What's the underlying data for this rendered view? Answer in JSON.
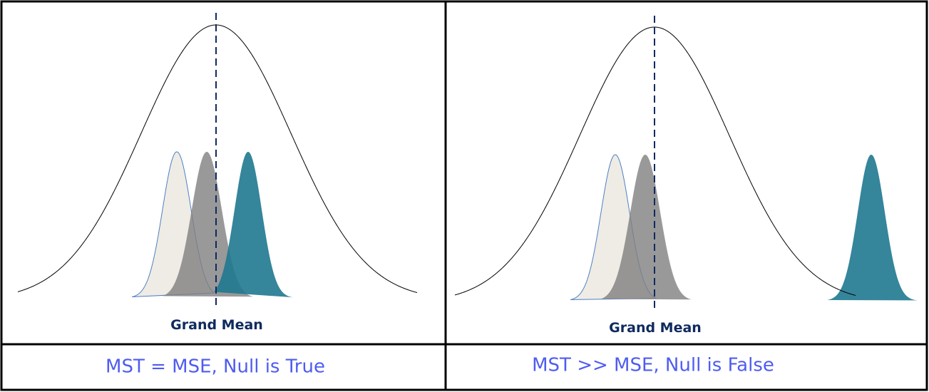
{
  "panels": [
    {
      "label": "Grand Mean",
      "caption": "MST = MSE, Null is True"
    },
    {
      "label": "Grand Mean",
      "caption": "MST >> MSE, Null is False"
    }
  ]
}
